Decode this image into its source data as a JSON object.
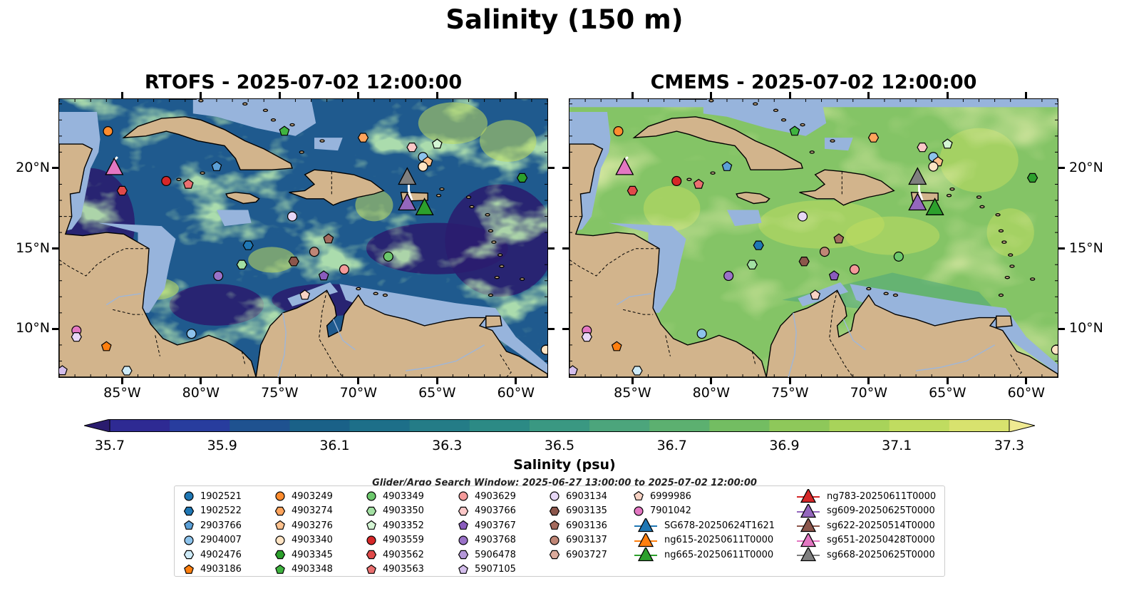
{
  "figure": {
    "suptitle": "Salinity (150 m)",
    "left_title": "RTOFS - 2025-07-02 12:00:00",
    "right_title": "CMEMS - 2025-07-02 12:00:00",
    "window_note": "Glider/Argo Search Window: 2025-06-27 13:00:00 to 2025-07-02 12:00:00"
  },
  "axes": {
    "lon_range": [
      -89,
      -58
    ],
    "lat_range": [
      7,
      24.3
    ],
    "x_ticks": [
      "85°W",
      "80°W",
      "75°W",
      "70°W",
      "65°W",
      "60°W"
    ],
    "y_ticks": [
      "20°N",
      "15°N",
      "10°N"
    ]
  },
  "colorbar": {
    "label": "Salinity (psu)",
    "ticks": [
      "35.7",
      "35.9",
      "36.1",
      "36.3",
      "36.5",
      "36.7",
      "36.9",
      "37.1",
      "37.3"
    ],
    "colors": [
      "#2a1c6e",
      "#2e2a93",
      "#283d9e",
      "#1f5290",
      "#1a6188",
      "#1d6f89",
      "#247c87",
      "#2c8a85",
      "#3a9882",
      "#4ca57c",
      "#5cb070",
      "#73bd62",
      "#8ec85a",
      "#a8d35a",
      "#c0dc60",
      "#d8e26e",
      "#f0ea92"
    ]
  },
  "map_colors": {
    "land": "#d2b48c",
    "shelf": "#97b4dc",
    "rtofs_background": "#1f5a8e",
    "cmems_background": "#84c466"
  },
  "legend": {
    "columns": [
      [
        {
          "label": "1902521",
          "marker": "circle",
          "color": "#1f77b4"
        },
        {
          "label": "1902522",
          "marker": "hexagon",
          "color": "#1f77b4"
        },
        {
          "label": "2903766",
          "marker": "pentagon",
          "color": "#5b9fd6"
        },
        {
          "label": "2904007",
          "marker": "circle",
          "color": "#8dc3ec"
        },
        {
          "label": "4902476",
          "marker": "hexagon",
          "color": "#cdeaf7"
        },
        {
          "label": "4903186",
          "marker": "pentagon",
          "color": "#ff7f0e"
        }
      ],
      [
        {
          "label": "4903249",
          "marker": "circle",
          "color": "#ff8c2e"
        },
        {
          "label": "4903274",
          "marker": "hexagon",
          "color": "#ffa45c"
        },
        {
          "label": "4903276",
          "marker": "pentagon",
          "color": "#ffc28e"
        },
        {
          "label": "4903340",
          "marker": "circle",
          "color": "#ffe4c4"
        },
        {
          "label": "4903345",
          "marker": "hexagon",
          "color": "#2ca02c"
        },
        {
          "label": "4903348",
          "marker": "pentagon",
          "color": "#3fb43f"
        }
      ],
      [
        {
          "label": "4903349",
          "marker": "circle",
          "color": "#6cc86c"
        },
        {
          "label": "4903350",
          "marker": "hexagon",
          "color": "#a3e0a3"
        },
        {
          "label": "4903352",
          "marker": "pentagon",
          "color": "#d4f5d4"
        },
        {
          "label": "4903559",
          "marker": "circle",
          "color": "#d62728"
        },
        {
          "label": "4903562",
          "marker": "hexagon",
          "color": "#e04a4a"
        },
        {
          "label": "4903563",
          "marker": "pentagon",
          "color": "#ea7070"
        }
      ],
      [
        {
          "label": "4903629",
          "marker": "circle",
          "color": "#f49a9a"
        },
        {
          "label": "4903766",
          "marker": "hexagon",
          "color": "#fcc8c8"
        },
        {
          "label": "4903767",
          "marker": "pentagon",
          "color": "#8a5cbd"
        },
        {
          "label": "4903768",
          "marker": "circle",
          "color": "#9a72c8"
        },
        {
          "label": "5906478",
          "marker": "hexagon",
          "color": "#b497d8"
        },
        {
          "label": "5907105",
          "marker": "pentagon",
          "color": "#d3bdeb"
        }
      ],
      [
        {
          "label": "6903134",
          "marker": "circle",
          "color": "#e7d7f6"
        },
        {
          "label": "6903135",
          "marker": "hexagon",
          "color": "#8c564b"
        },
        {
          "label": "6903136",
          "marker": "pentagon",
          "color": "#a46a5d"
        },
        {
          "label": "6903137",
          "marker": "circle",
          "color": "#c08676"
        },
        {
          "label": "6903727",
          "marker": "hexagon",
          "color": "#dcab9c"
        }
      ],
      [
        {
          "label": "6999986",
          "marker": "pentagon",
          "color": "#f8d3c4"
        },
        {
          "label": "7901042",
          "marker": "circle",
          "color": "#e377c2"
        },
        {
          "label": "SG678-20250624T1621",
          "marker": "triangle",
          "color": "#1f77b4"
        },
        {
          "label": "ng615-20250611T0000",
          "marker": "triangle",
          "color": "#ff7f0e"
        },
        {
          "label": "ng665-20250611T0000",
          "marker": "triangle",
          "color": "#2ca02c"
        }
      ],
      [
        {
          "label": "ng783-20250611T0000",
          "marker": "triangle",
          "color": "#d62728"
        },
        {
          "label": "sg609-20250625T0000",
          "marker": "triangle",
          "color": "#9467bd"
        },
        {
          "label": "sg622-20250514T0000",
          "marker": "triangle",
          "color": "#8c564b"
        },
        {
          "label": "sg651-20250428T0000",
          "marker": "triangle",
          "color": "#e377c2"
        },
        {
          "label": "sg668-20250625T0000",
          "marker": "triangle",
          "color": "#7f7f7f"
        }
      ]
    ]
  },
  "map_markers": [
    {
      "lon": -85.9,
      "lat": 22.3,
      "marker": "circle",
      "color": "#ff8c2e"
    },
    {
      "lon": -74.7,
      "lat": 22.3,
      "marker": "pentagon",
      "color": "#3fb43f"
    },
    {
      "lon": -69.7,
      "lat": 21.9,
      "marker": "hexagon",
      "color": "#ffa45c"
    },
    {
      "lon": -65.0,
      "lat": 21.5,
      "marker": "pentagon",
      "color": "#d4f5d4"
    },
    {
      "lon": -66.6,
      "lat": 21.3,
      "marker": "hexagon",
      "color": "#fcc8c8"
    },
    {
      "lon": -65.9,
      "lat": 20.7,
      "marker": "circle",
      "color": "#8dc3ec"
    },
    {
      "lon": -65.6,
      "lat": 20.4,
      "marker": "pentagon",
      "color": "#ffc28e"
    },
    {
      "lon": -65.9,
      "lat": 20.1,
      "marker": "circle",
      "color": "#ffe4c4"
    },
    {
      "lon": -79.0,
      "lat": 20.1,
      "marker": "pentagon",
      "color": "#5b9fd6"
    },
    {
      "lon": -82.2,
      "lat": 19.2,
      "marker": "circle",
      "color": "#d62728"
    },
    {
      "lon": -80.8,
      "lat": 19.0,
      "marker": "pentagon",
      "color": "#ea7070"
    },
    {
      "lon": -85.0,
      "lat": 18.6,
      "marker": "hexagon",
      "color": "#e04a4a"
    },
    {
      "lon": -59.6,
      "lat": 19.4,
      "marker": "hexagon",
      "color": "#2ca02c"
    },
    {
      "lon": -74.2,
      "lat": 17.0,
      "marker": "circle",
      "color": "#e7d7f6"
    },
    {
      "lon": -71.9,
      "lat": 15.6,
      "marker": "pentagon",
      "color": "#a46a5d"
    },
    {
      "lon": -72.8,
      "lat": 14.8,
      "marker": "circle",
      "color": "#c08676"
    },
    {
      "lon": -77.0,
      "lat": 15.2,
      "marker": "hexagon",
      "color": "#1f77b4"
    },
    {
      "lon": -74.1,
      "lat": 14.2,
      "marker": "hexagon",
      "color": "#8c564b"
    },
    {
      "lon": -77.4,
      "lat": 14.0,
      "marker": "hexagon",
      "color": "#a3e0a3"
    },
    {
      "lon": -70.9,
      "lat": 13.7,
      "marker": "circle",
      "color": "#f49a9a"
    },
    {
      "lon": -68.1,
      "lat": 14.5,
      "marker": "circle",
      "color": "#6cc86c"
    },
    {
      "lon": -78.9,
      "lat": 13.3,
      "marker": "circle",
      "color": "#9a72c8"
    },
    {
      "lon": -72.2,
      "lat": 13.3,
      "marker": "pentagon",
      "color": "#8a5cbd"
    },
    {
      "lon": -73.4,
      "lat": 12.1,
      "marker": "pentagon",
      "color": "#f8d3c4"
    },
    {
      "lon": -80.6,
      "lat": 9.7,
      "marker": "circle",
      "color": "#8dc3ec"
    },
    {
      "lon": -87.9,
      "lat": 9.9,
      "marker": "circle",
      "color": "#e377c2"
    },
    {
      "lon": -87.9,
      "lat": 9.5,
      "marker": "hexagon",
      "color": "#e7d7f6"
    },
    {
      "lon": -86.0,
      "lat": 8.9,
      "marker": "pentagon",
      "color": "#ff7f0e"
    },
    {
      "lon": -84.7,
      "lat": 7.4,
      "marker": "hexagon",
      "color": "#cdeaf7"
    },
    {
      "lon": -88.8,
      "lat": 7.4,
      "marker": "pentagon",
      "color": "#d3bdeb"
    },
    {
      "lon": -58.1,
      "lat": 8.7,
      "marker": "circle",
      "color": "#ffe4c4"
    }
  ],
  "glider_markers": [
    {
      "lon": -85.5,
      "lat": 20.0,
      "color": "#e377c2"
    },
    {
      "lon": -66.9,
      "lat": 19.4,
      "color": "#7f7f7f"
    },
    {
      "lon": -66.9,
      "lat": 17.8,
      "color": "#9467bd"
    },
    {
      "lon": -65.8,
      "lat": 17.5,
      "color": "#2ca02c"
    }
  ],
  "features": {
    "rtofs_low_patches": [
      {
        "lon": -87.0,
        "lat": 16.5,
        "rx": 2.8,
        "ry": 3.5
      },
      {
        "lon": -65.0,
        "lat": 15.0,
        "rx": 4.5,
        "ry": 1.6
      },
      {
        "lon": -61.0,
        "lat": 15.5,
        "rx": 3.5,
        "ry": 3.5
      },
      {
        "lon": -72.0,
        "lat": 11.8,
        "rx": 3.5,
        "ry": 1.0
      },
      {
        "lon": -79.0,
        "lat": 11.5,
        "rx": 3.0,
        "ry": 1.3
      }
    ],
    "rtofs_high_patches": [
      {
        "lon": -64.0,
        "lat": 22.8,
        "rx": 2.2,
        "ry": 1.3
      },
      {
        "lon": -60.5,
        "lat": 21.7,
        "rx": 1.8,
        "ry": 1.3
      },
      {
        "lon": -75.5,
        "lat": 14.3,
        "rx": 1.5,
        "ry": 0.8
      },
      {
        "lon": -69.0,
        "lat": 17.7,
        "rx": 1.2,
        "ry": 1.0
      },
      {
        "lon": -83.0,
        "lat": 12.5,
        "rx": 1.6,
        "ry": 0.7
      }
    ],
    "cmems_high_patches": [
      {
        "lon": -73.0,
        "lat": 16.5,
        "rx": 4.0,
        "ry": 1.5
      },
      {
        "lon": -68.5,
        "lat": 15.8,
        "rx": 3.0,
        "ry": 1.2
      },
      {
        "lon": -63.0,
        "lat": 20.5,
        "rx": 2.5,
        "ry": 2.0
      },
      {
        "lon": -61.0,
        "lat": 16.0,
        "rx": 1.5,
        "ry": 1.5
      },
      {
        "lon": -82.5,
        "lat": 17.5,
        "rx": 1.8,
        "ry": 1.4
      }
    ]
  }
}
